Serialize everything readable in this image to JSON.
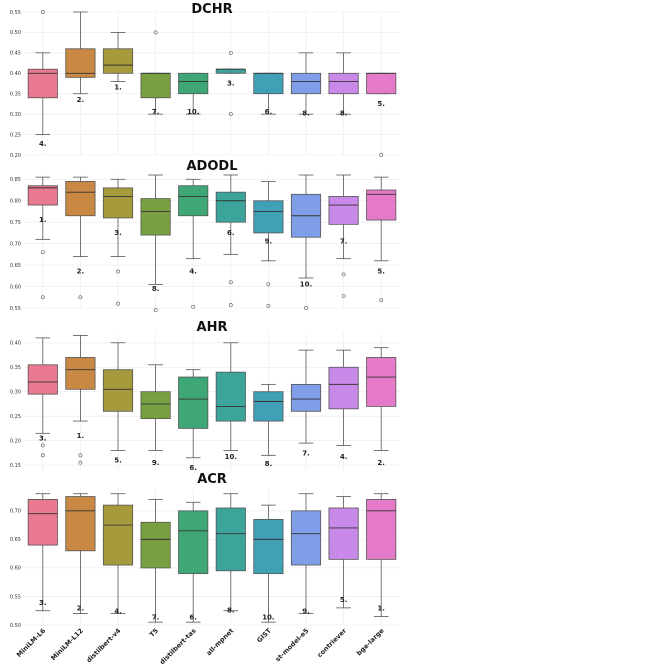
{
  "colors": [
    "#e8798e",
    "#c98944",
    "#a79a3c",
    "#78a040",
    "#3ea775",
    "#3da49b",
    "#3fa0b6",
    "#7f9ee8",
    "#c989e9",
    "#e57ac9"
  ],
  "chart_data": [
    {
      "type": "box",
      "title": "DCHR",
      "ylim": [
        0.2,
        0.55
      ],
      "yticks": [
        0.2,
        0.25,
        0.3,
        0.35,
        0.4,
        0.45,
        0.5,
        0.55
      ],
      "ytick_labels": [
        "0.20",
        "0.25",
        "0.30",
        "0.35",
        "0.40",
        "0.45",
        "0.50",
        "0.55"
      ],
      "categories": [
        "MiniLM-L6",
        "MiniLM-L12",
        "distilbert-v4",
        "T5",
        "distilbert-tas",
        "all-mpnet",
        "GIST",
        "st-model-e5",
        "contriever",
        "bge-large"
      ],
      "boxes": [
        {
          "whislo": 0.25,
          "q1": 0.34,
          "med": 0.4,
          "q3": 0.41,
          "whishi": 0.45,
          "fliers": [
            0.55
          ]
        },
        {
          "whislo": 0.35,
          "q1": 0.39,
          "med": 0.4,
          "q3": 0.46,
          "whishi": 0.55,
          "fliers": []
        },
        {
          "whislo": 0.38,
          "q1": 0.4,
          "med": 0.42,
          "q3": 0.46,
          "whishi": 0.5,
          "fliers": []
        },
        {
          "whislo": 0.3,
          "q1": 0.34,
          "med": 0.4,
          "q3": 0.4,
          "whishi": 0.4,
          "fliers": [
            0.5
          ]
        },
        {
          "whislo": 0.3,
          "q1": 0.35,
          "med": 0.38,
          "q3": 0.4,
          "whishi": 0.4,
          "fliers": []
        },
        {
          "whislo": 0.4,
          "q1": 0.4,
          "med": 0.41,
          "q3": 0.41,
          "whishi": 0.41,
          "fliers": [
            0.45,
            0.3
          ]
        },
        {
          "whislo": 0.3,
          "q1": 0.35,
          "med": 0.4,
          "q3": 0.4,
          "whishi": 0.4,
          "fliers": []
        },
        {
          "whislo": 0.3,
          "q1": 0.35,
          "med": 0.38,
          "q3": 0.4,
          "whishi": 0.45,
          "fliers": []
        },
        {
          "whislo": 0.3,
          "q1": 0.35,
          "med": 0.38,
          "q3": 0.4,
          "whishi": 0.45,
          "fliers": []
        },
        {
          "whislo": 0.35,
          "q1": 0.35,
          "med": 0.4,
          "q3": 0.4,
          "whishi": 0.4,
          "fliers": [
            0.2
          ]
        }
      ],
      "rank_labels": [
        "4.",
        "2.",
        "1.",
        "7.",
        "10.",
        "3.",
        "6.",
        "8.",
        "8.",
        "5."
      ],
      "rank_values": [
        0.222,
        0.33,
        0.36,
        0.3,
        0.3,
        0.37,
        0.3,
        0.297,
        0.297,
        0.32
      ]
    },
    {
      "type": "box",
      "title": "ADODL",
      "ylim": [
        0.55,
        0.86
      ],
      "yticks": [
        0.55,
        0.6,
        0.65,
        0.7,
        0.75,
        0.8,
        0.85
      ],
      "ytick_labels": [
        "0.55",
        "0.60",
        "0.65",
        "0.70",
        "0.75",
        "0.80",
        "0.85"
      ],
      "categories": [
        "MiniLM-L6",
        "MiniLM-L12",
        "distilbert-v4",
        "T5",
        "distilbert-tas",
        "all-mpnet",
        "GIST",
        "st-model-e5",
        "contriever",
        "bge-large"
      ],
      "boxes": [
        {
          "whislo": 0.71,
          "q1": 0.79,
          "med": 0.83,
          "q3": 0.835,
          "whishi": 0.855,
          "fliers": [
            0.68,
            0.575
          ]
        },
        {
          "whislo": 0.67,
          "q1": 0.765,
          "med": 0.82,
          "q3": 0.845,
          "whishi": 0.855,
          "fliers": [
            0.575
          ]
        },
        {
          "whislo": 0.67,
          "q1": 0.76,
          "med": 0.81,
          "q3": 0.83,
          "whishi": 0.85,
          "fliers": [
            0.635,
            0.56
          ]
        },
        {
          "whislo": 0.605,
          "q1": 0.72,
          "med": 0.775,
          "q3": 0.805,
          "whishi": 0.86,
          "fliers": [
            0.545
          ]
        },
        {
          "whislo": 0.665,
          "q1": 0.765,
          "med": 0.81,
          "q3": 0.835,
          "whishi": 0.85,
          "fliers": [
            0.553
          ]
        },
        {
          "whislo": 0.675,
          "q1": 0.75,
          "med": 0.8,
          "q3": 0.82,
          "whishi": 0.86,
          "fliers": [
            0.61,
            0.557
          ]
        },
        {
          "whislo": 0.66,
          "q1": 0.725,
          "med": 0.775,
          "q3": 0.8,
          "whishi": 0.845,
          "fliers": [
            0.605,
            0.555
          ]
        },
        {
          "whislo": 0.62,
          "q1": 0.715,
          "med": 0.765,
          "q3": 0.815,
          "whishi": 0.86,
          "fliers": [
            0.55
          ]
        },
        {
          "whislo": 0.665,
          "q1": 0.745,
          "med": 0.79,
          "q3": 0.81,
          "whishi": 0.86,
          "fliers": [
            0.628,
            0.578
          ]
        },
        {
          "whislo": 0.66,
          "q1": 0.755,
          "med": 0.815,
          "q3": 0.825,
          "whishi": 0.855,
          "fliers": [
            0.568
          ]
        }
      ],
      "rank_labels": [
        "1.",
        "2.",
        "3.",
        "8.",
        "4.",
        "6.",
        "9.",
        "10.",
        "7.",
        "5."
      ],
      "rank_values": [
        0.75,
        0.63,
        0.72,
        0.59,
        0.63,
        0.72,
        0.7,
        0.6,
        0.7,
        0.63
      ]
    },
    {
      "type": "box",
      "title": "AHR",
      "ylim": [
        0.14,
        0.42
      ],
      "yticks": [
        0.15,
        0.2,
        0.25,
        0.3,
        0.35,
        0.4
      ],
      "ytick_labels": [
        "0.15",
        "0.20",
        "0.25",
        "0.30",
        "0.35",
        "0.40"
      ],
      "categories": [
        "MiniLM-L6",
        "MiniLM-L12",
        "distilbert-v4",
        "T5",
        "distilbert-tas",
        "all-mpnet",
        "GIST",
        "st-model-e5",
        "contriever",
        "bge-large"
      ],
      "boxes": [
        {
          "whislo": 0.215,
          "q1": 0.295,
          "med": 0.32,
          "q3": 0.355,
          "whishi": 0.41,
          "fliers": [
            0.19,
            0.17
          ]
        },
        {
          "whislo": 0.24,
          "q1": 0.305,
          "med": 0.345,
          "q3": 0.37,
          "whishi": 0.415,
          "fliers": [
            0.17,
            0.155
          ]
        },
        {
          "whislo": 0.18,
          "q1": 0.26,
          "med": 0.305,
          "q3": 0.345,
          "whishi": 0.4,
          "fliers": []
        },
        {
          "whislo": 0.18,
          "q1": 0.245,
          "med": 0.275,
          "q3": 0.3,
          "whishi": 0.355,
          "fliers": []
        },
        {
          "whislo": 0.165,
          "q1": 0.225,
          "med": 0.285,
          "q3": 0.33,
          "whishi": 0.345,
          "fliers": []
        },
        {
          "whislo": 0.18,
          "q1": 0.24,
          "med": 0.27,
          "q3": 0.34,
          "whishi": 0.4,
          "fliers": []
        },
        {
          "whislo": 0.17,
          "q1": 0.24,
          "med": 0.28,
          "q3": 0.3,
          "whishi": 0.315,
          "fliers": []
        },
        {
          "whislo": 0.195,
          "q1": 0.26,
          "med": 0.285,
          "q3": 0.315,
          "whishi": 0.385,
          "fliers": []
        },
        {
          "whislo": 0.19,
          "q1": 0.265,
          "med": 0.315,
          "q3": 0.35,
          "whishi": 0.385,
          "fliers": []
        },
        {
          "whislo": 0.18,
          "q1": 0.27,
          "med": 0.33,
          "q3": 0.37,
          "whishi": 0.39,
          "fliers": []
        }
      ],
      "rank_labels": [
        "3.",
        "1.",
        "5.",
        "9.",
        "6.",
        "10.",
        "8.",
        "7.",
        "4.",
        "2."
      ],
      "rank_values": [
        0.2,
        0.205,
        0.155,
        0.15,
        0.14,
        0.162,
        0.148,
        0.17,
        0.162,
        0.15
      ]
    },
    {
      "type": "box",
      "title": "ACR",
      "ylim": [
        0.5,
        0.74
      ],
      "yticks": [
        0.5,
        0.55,
        0.6,
        0.65,
        0.7
      ],
      "ytick_labels": [
        "0.50",
        "0.55",
        "0.60",
        "0.65",
        "0.70"
      ],
      "categories": [
        "MiniLM-L6",
        "MiniLM-L12",
        "distilbert-v4",
        "T5",
        "distilbert-tas",
        "all-mpnet",
        "GIST",
        "st-model-e5",
        "contriever",
        "bge-large"
      ],
      "boxes": [
        {
          "whislo": 0.525,
          "q1": 0.64,
          "med": 0.695,
          "q3": 0.72,
          "whishi": 0.73,
          "fliers": []
        },
        {
          "whislo": 0.52,
          "q1": 0.63,
          "med": 0.7,
          "q3": 0.725,
          "whishi": 0.73,
          "fliers": []
        },
        {
          "whislo": 0.52,
          "q1": 0.605,
          "med": 0.675,
          "q3": 0.71,
          "whishi": 0.73,
          "fliers": []
        },
        {
          "whislo": 0.505,
          "q1": 0.6,
          "med": 0.65,
          "q3": 0.68,
          "whishi": 0.72,
          "fliers": []
        },
        {
          "whislo": 0.505,
          "q1": 0.59,
          "med": 0.665,
          "q3": 0.7,
          "whishi": 0.715,
          "fliers": []
        },
        {
          "whislo": 0.525,
          "q1": 0.595,
          "med": 0.66,
          "q3": 0.705,
          "whishi": 0.73,
          "fliers": []
        },
        {
          "whislo": 0.505,
          "q1": 0.59,
          "med": 0.65,
          "q3": 0.685,
          "whishi": 0.71,
          "fliers": []
        },
        {
          "whislo": 0.52,
          "q1": 0.605,
          "med": 0.66,
          "q3": 0.7,
          "whishi": 0.73,
          "fliers": []
        },
        {
          "whislo": 0.53,
          "q1": 0.615,
          "med": 0.67,
          "q3": 0.705,
          "whishi": 0.725,
          "fliers": []
        },
        {
          "whislo": 0.515,
          "q1": 0.615,
          "med": 0.7,
          "q3": 0.72,
          "whishi": 0.73,
          "fliers": []
        }
      ],
      "rank_labels": [
        "3.",
        "2.",
        "4.",
        "7.",
        "6.",
        "8.",
        "10.",
        "9.",
        "5.",
        "1."
      ],
      "rank_values": [
        0.535,
        0.525,
        0.52,
        0.51,
        0.51,
        0.522,
        0.51,
        0.52,
        0.54,
        0.525
      ]
    }
  ]
}
